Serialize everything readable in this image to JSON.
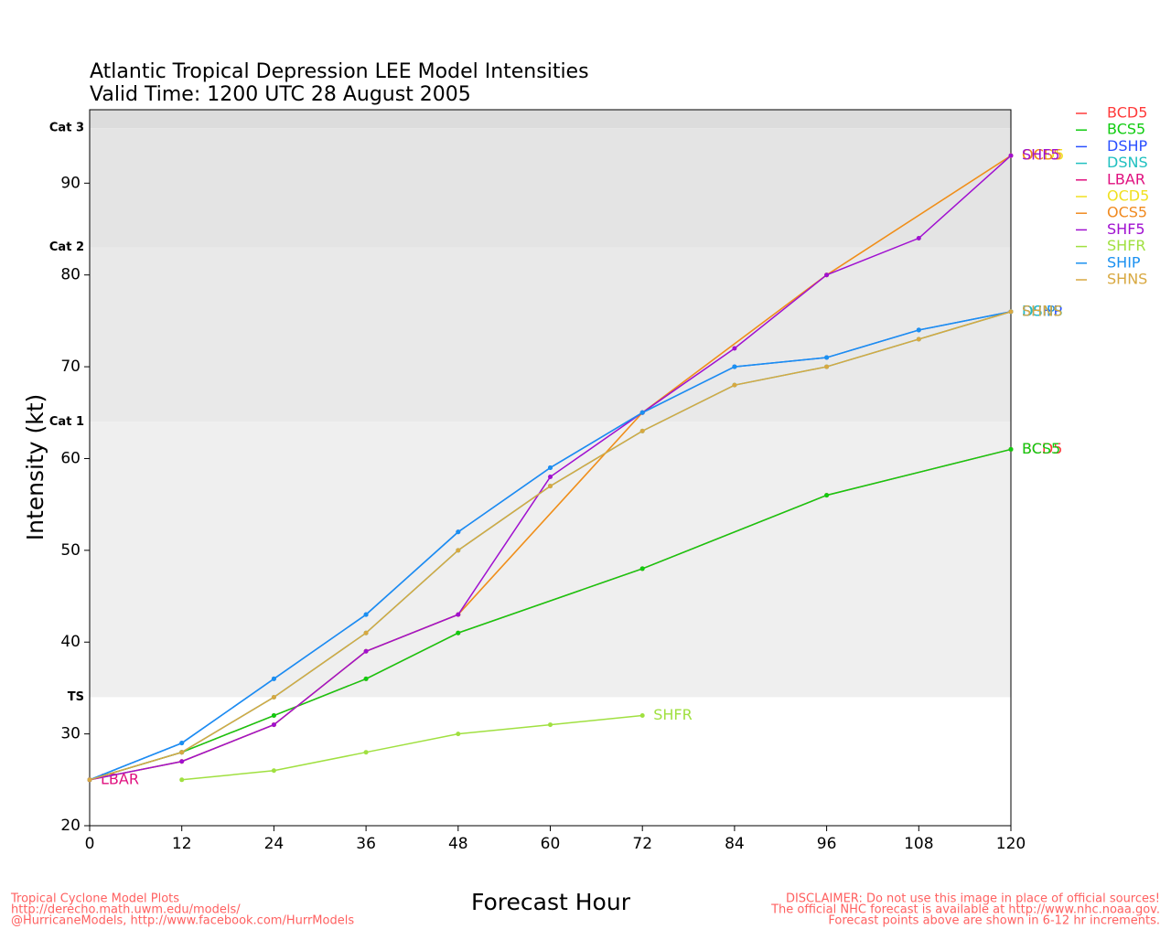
{
  "chart_data": {
    "type": "line",
    "title": "Atlantic Tropical Depression LEE Model Intensities",
    "subtitle": "Valid Time: 1200 UTC 28 August 2005",
    "x_label": "Forecast Hour",
    "y_label": "Intensity (kt)",
    "xlim": [
      0,
      120
    ],
    "xticks": [
      0,
      12,
      24,
      36,
      48,
      60,
      72,
      84,
      96,
      108,
      120
    ],
    "ylim": [
      20,
      98
    ],
    "yticks": [
      20,
      30,
      40,
      50,
      60,
      70,
      80,
      90
    ],
    "category_lines": [
      {
        "label": "Cat 3",
        "value": 96
      },
      {
        "label": "Cat 2",
        "value": 83
      },
      {
        "label": "Cat 1",
        "value": 64
      },
      {
        "label": "TS",
        "value": 34
      }
    ],
    "series": [
      {
        "name": "BCD5",
        "color": "#ff3a3a",
        "x": [
          0,
          12,
          24,
          36,
          48,
          72,
          96,
          120
        ],
        "values": [
          25,
          28,
          32,
          36,
          41,
          48,
          56,
          61
        ]
      },
      {
        "name": "BCS5",
        "color": "#10cc10",
        "x": [
          0,
          12,
          24,
          36,
          48,
          72,
          96,
          120
        ],
        "values": [
          25,
          28,
          32,
          36,
          41,
          48,
          56,
          61
        ]
      },
      {
        "name": "DSHP",
        "color": "#2a50ff",
        "x": [
          0,
          12,
          24,
          36,
          48,
          60,
          72,
          84,
          96,
          108,
          120
        ],
        "values": [
          25,
          29,
          36,
          43,
          52,
          59,
          65,
          70,
          71,
          74,
          76
        ]
      },
      {
        "name": "DSNS",
        "color": "#20c0c0",
        "x": [
          0,
          12,
          24,
          36,
          48,
          60,
          72,
          84,
          96,
          108,
          120
        ],
        "values": [
          25,
          28,
          34,
          41,
          50,
          57,
          63,
          68,
          70,
          73,
          76
        ]
      },
      {
        "name": "LBAR",
        "color": "#e0107f",
        "x": [
          0
        ],
        "values": [
          25
        ]
      },
      {
        "name": "OCD5",
        "color": "#f0e020",
        "x": [
          0,
          12,
          24,
          36,
          48,
          72,
          96,
          120
        ],
        "values": [
          25,
          27,
          31,
          39,
          43,
          65,
          80,
          93
        ]
      },
      {
        "name": "OCS5",
        "color": "#f08a20",
        "x": [
          0,
          12,
          24,
          36,
          48,
          72,
          96,
          120
        ],
        "values": [
          25,
          27,
          31,
          39,
          43,
          65,
          80,
          93
        ]
      },
      {
        "name": "SHF5",
        "color": "#a010d0",
        "x": [
          0,
          12,
          24,
          36,
          48,
          60,
          72,
          84,
          96,
          108,
          120
        ],
        "values": [
          25,
          27,
          31,
          39,
          43,
          58,
          65,
          72,
          80,
          84,
          93
        ]
      },
      {
        "name": "SHFR",
        "color": "#a0e040",
        "x": [
          12,
          24,
          36,
          48,
          60,
          72
        ],
        "values": [
          25,
          26,
          28,
          30,
          31,
          32
        ]
      },
      {
        "name": "SHIP",
        "color": "#1a90f0",
        "x": [
          0,
          12,
          24,
          36,
          48,
          60,
          72,
          84,
          96,
          108,
          120
        ],
        "values": [
          25,
          29,
          36,
          43,
          52,
          59,
          65,
          70,
          71,
          74,
          76
        ]
      },
      {
        "name": "SHNS",
        "color": "#d8a840",
        "x": [
          0,
          12,
          24,
          36,
          48,
          60,
          72,
          84,
          96,
          108,
          120
        ],
        "values": [
          25,
          28,
          34,
          41,
          50,
          57,
          63,
          68,
          70,
          73,
          76
        ]
      }
    ],
    "footer_left": [
      "Tropical Cyclone Model Plots",
      "http://derecho.math.uwm.edu/models/",
      "@HurricaneModels, http://www.facebook.com/HurrModels"
    ],
    "footer_right": [
      "DISCLAIMER: Do not use this image in place of official sources!",
      "The official NHC forecast is available at http://www.nhc.noaa.gov.",
      "Forecast points above are shown in 6-12 hr increments."
    ]
  }
}
